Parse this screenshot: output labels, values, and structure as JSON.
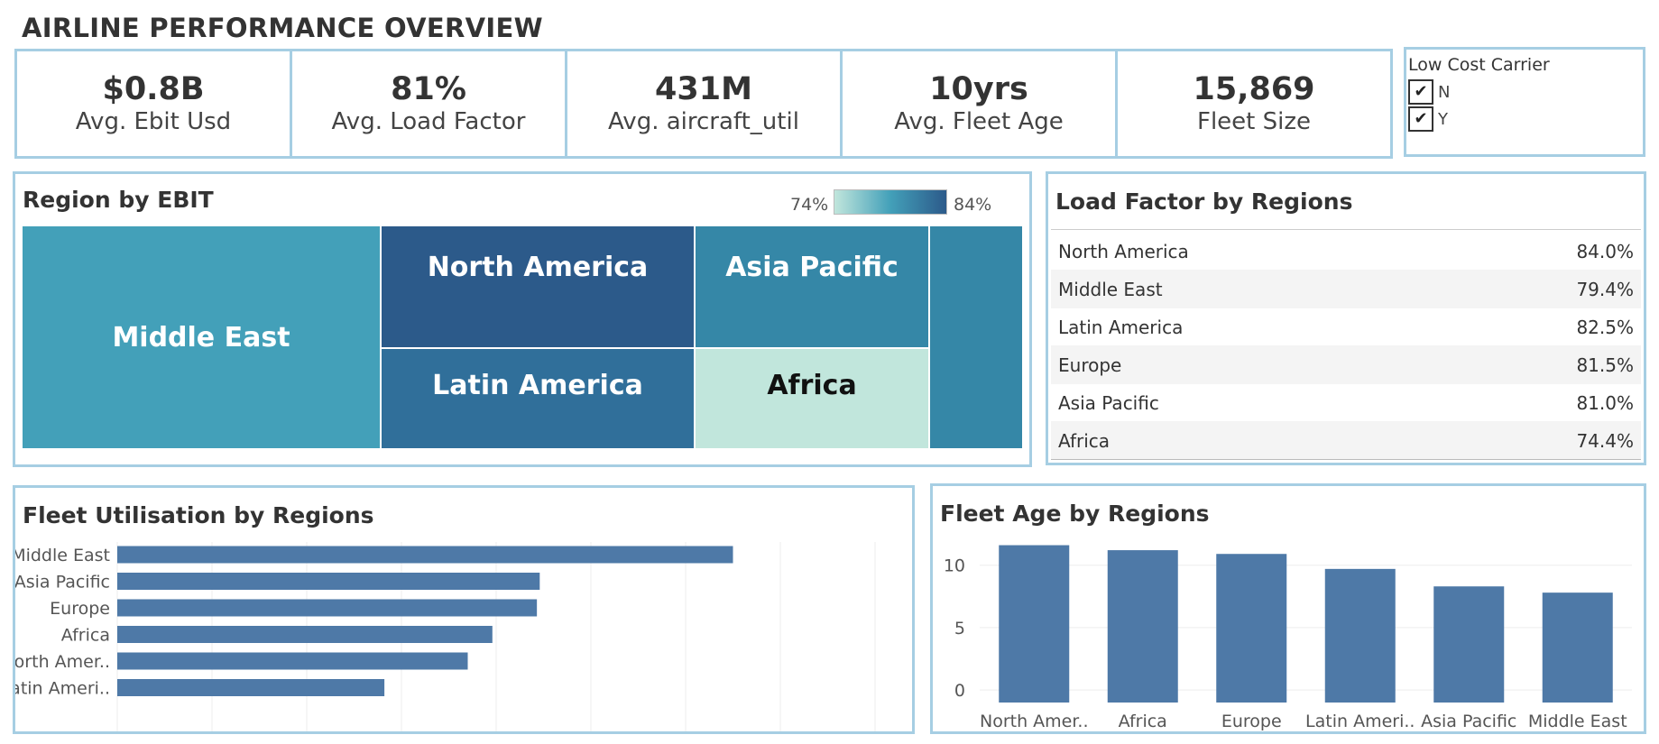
{
  "page_title": "AIRLINE PERFORMANCE OVERVIEW",
  "kpis": [
    {
      "value": "$0.8B",
      "label": "Avg. Ebit Usd"
    },
    {
      "value": "81%",
      "label": "Avg. Load Factor"
    },
    {
      "value": "431M",
      "label": "Avg. aircraft_util"
    },
    {
      "value": "10yrs",
      "label": "Avg. Fleet Age"
    },
    {
      "value": "15,869",
      "label": "Fleet Size"
    }
  ],
  "filter": {
    "title": "Low Cost Carrier",
    "options": [
      {
        "label": "N",
        "checked": true
      },
      {
        "label": "Y",
        "checked": true
      }
    ]
  },
  "colors": {
    "border": "#a6cee3",
    "bar": "#4e79a7",
    "scale_low": "#c1e6dc",
    "scale_high": "#2c5a8a"
  },
  "chart_data": [
    {
      "type": "treemap",
      "title": "Region by EBIT",
      "color_legend": {
        "min_label": "74%",
        "max_label": "84%"
      },
      "cells": [
        {
          "label": "Middle East",
          "color": "#43a0b9"
        },
        {
          "label": "North America",
          "color": "#2c5a8a"
        },
        {
          "label": "Asia Pacific",
          "color": "#3587a7"
        },
        {
          "label": "Latin America",
          "color": "#306f9a"
        },
        {
          "label": "Africa",
          "color": "#c1e6dc"
        },
        {
          "label": "",
          "color": "#3587a7"
        }
      ]
    },
    {
      "type": "table",
      "title": "Load Factor by Regions",
      "rows": [
        {
          "region": "North America",
          "value": "84.0%"
        },
        {
          "region": "Middle East",
          "value": "79.4%"
        },
        {
          "region": "Latin America",
          "value": "82.5%"
        },
        {
          "region": "Europe",
          "value": "81.5%"
        },
        {
          "region": "Asia Pacific",
          "value": "81.0%"
        },
        {
          "region": "Africa",
          "value": "74.4%"
        }
      ]
    },
    {
      "type": "bar",
      "orientation": "horizontal",
      "title": "Fleet Utilisation by Regions",
      "categories": [
        "Middle East",
        "Asia Pacific",
        "Europe",
        "Africa",
        "North Amer..",
        "Latin Ameri.."
      ],
      "values": [
        650,
        446,
        443,
        396,
        370,
        282
      ],
      "xlim": [
        0,
        800
      ],
      "grid": true
    },
    {
      "type": "bar",
      "orientation": "vertical",
      "title": "Fleet Age by Regions",
      "categories": [
        "North Amer..",
        "Africa",
        "Europe",
        "Latin Ameri..",
        "Asia Pacific",
        "Middle East"
      ],
      "values": [
        11.6,
        11.2,
        10.9,
        9.7,
        8.3,
        7.8
      ],
      "ylim": [
        -1,
        12
      ],
      "yticks": [
        "0",
        "5",
        "10"
      ],
      "grid": true
    }
  ]
}
